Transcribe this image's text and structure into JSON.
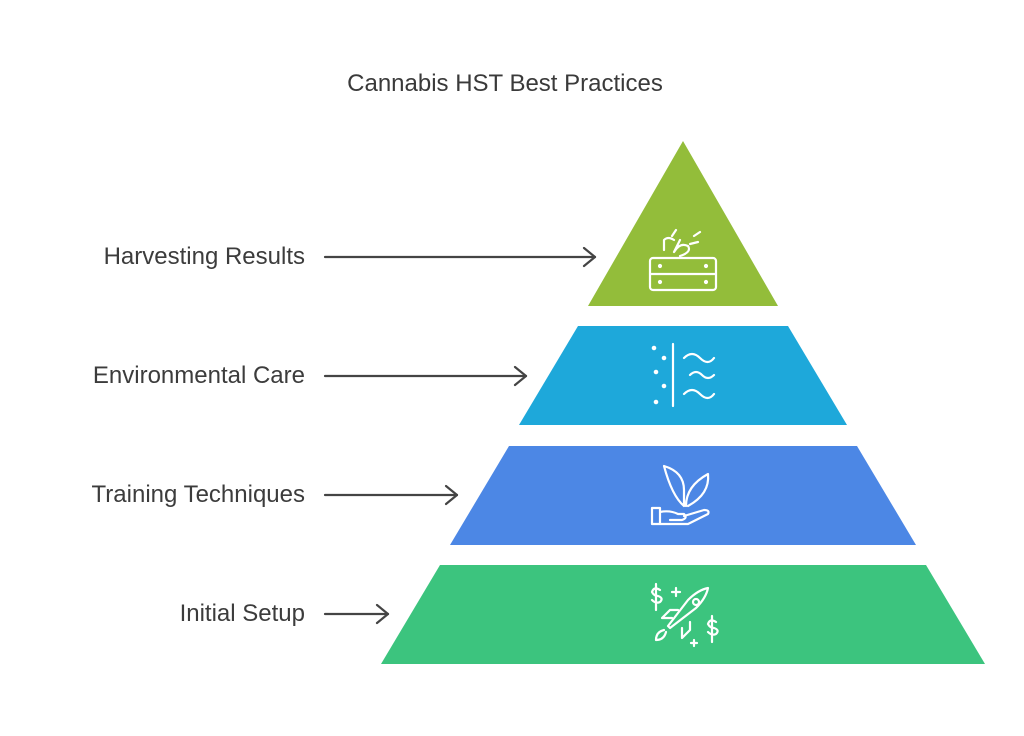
{
  "title": "Cannabis HST Best Practices",
  "levels": [
    {
      "label": "Harvesting Results",
      "color": "#93BD3A",
      "icon": "harvest-crate-icon"
    },
    {
      "label": "Environmental Care",
      "color": "#1EA8DA",
      "icon": "air-humidity-icon"
    },
    {
      "label": "Training Techniques",
      "color": "#4C87E5",
      "icon": "hand-plant-icon"
    },
    {
      "label": "Initial Setup",
      "color": "#3CC47E",
      "icon": "rocket-money-icon"
    }
  ]
}
